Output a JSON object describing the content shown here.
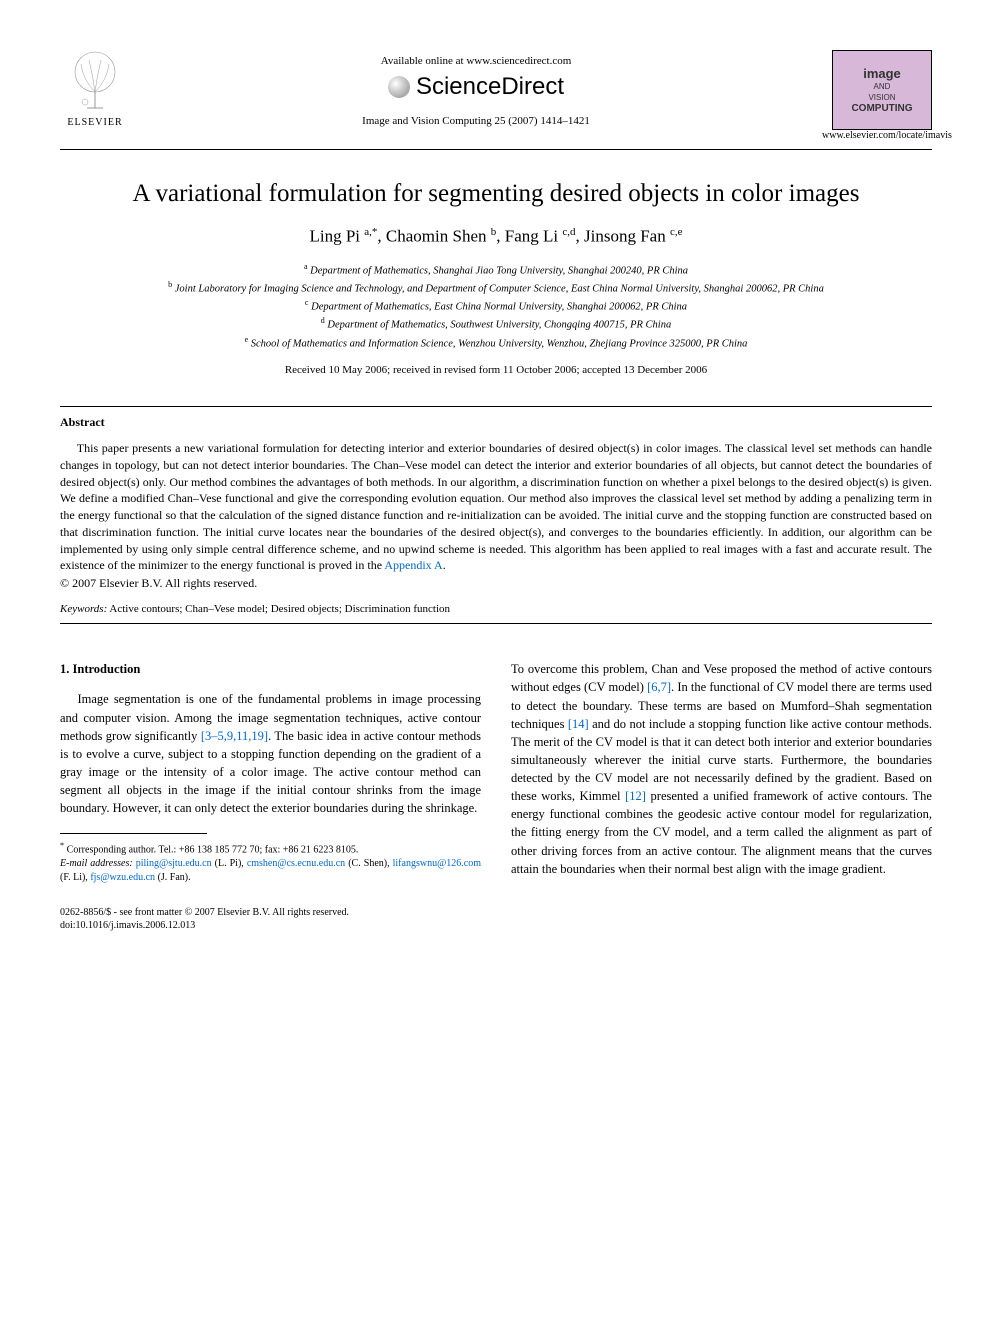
{
  "header": {
    "available_online": "Available online at www.sciencedirect.com",
    "sciencedirect": "ScienceDirect",
    "citation": "Image and Vision Computing 25 (2007) 1414–1421",
    "elsevier_label": "ELSEVIER",
    "journal_box": {
      "line1": "image",
      "line2": "AND",
      "line3a": "VISION",
      "line3b": "COMPUTING"
    },
    "journal_url": "www.elsevier.com/locate/imavis"
  },
  "title": "A variational formulation for segmenting desired objects in color images",
  "authors_html": "Ling Pi <sup>a,*</sup>, Chaomin Shen <sup>b</sup>, Fang Li <sup>c,d</sup>, Jinsong Fan <sup>c,e</sup>",
  "affiliations": [
    {
      "sup": "a",
      "text": "Department of Mathematics, Shanghai Jiao Tong University, Shanghai 200240, PR China"
    },
    {
      "sup": "b",
      "text": "Joint Laboratory for Imaging Science and Technology, and Department of Computer Science, East China Normal University, Shanghai 200062, PR China"
    },
    {
      "sup": "c",
      "text": "Department of Mathematics, East China Normal University, Shanghai 200062, PR China"
    },
    {
      "sup": "d",
      "text": "Department of Mathematics, Southwest University, Chongqing 400715, PR China"
    },
    {
      "sup": "e",
      "text": "School of Mathematics and Information Science, Wenzhou University, Wenzhou, Zhejiang Province 325000, PR China"
    }
  ],
  "dates": "Received 10 May 2006; received in revised form 11 October 2006; accepted 13 December 2006",
  "abstract": {
    "heading": "Abstract",
    "body": "This paper presents a new variational formulation for detecting interior and exterior boundaries of desired object(s) in color images. The classical level set methods can handle changes in topology, but can not detect interior boundaries. The Chan–Vese model can detect the interior and exterior boundaries of all objects, but cannot detect the boundaries of desired object(s) only. Our method combines the advantages of both methods. In our algorithm, a discrimination function on whether a pixel belongs to the desired object(s) is given. We define a modified Chan–Vese functional and give the corresponding evolution equation. Our method also improves the classical level set method by adding a penalizing term in the energy functional so that the calculation of the signed distance function and re-initialization can be avoided. The initial curve and the stopping function are constructed based on that discrimination function. The initial curve locates near the boundaries of the desired object(s), and converges to the boundaries efficiently. In addition, our algorithm can be implemented by using only simple central difference scheme, and no upwind scheme is needed. This algorithm has been applied to real images with a fast and accurate result. The existence of the minimizer to the energy functional is proved in the ",
    "appendix_link": "Appendix A",
    "body_tail": ".",
    "copyright": "© 2007 Elsevier B.V. All rights reserved."
  },
  "keywords": {
    "label": "Keywords:",
    "text": " Active contours; Chan–Vese model; Desired objects; Discrimination function"
  },
  "section1": {
    "heading": "1. Introduction",
    "left_para": "Image segmentation is one of the fundamental problems in image processing and computer vision. Among the image segmentation techniques, active contour methods grow significantly ",
    "left_ref1": "[3–5,9,11,19]",
    "left_para2": ". The basic idea in active contour methods is to evolve a curve, subject to a stopping function depending on the gradient of a gray image or the intensity of a color image. The active contour method can segment all objects in the image if the initial contour shrinks from the image boundary. However, it can only detect the exterior boundaries during the shrinkage.",
    "right_para1": "To overcome this problem, Chan and Vese proposed the method of active contours without edges (CV model) ",
    "right_ref1": "[6,7]",
    "right_para2": ". In the functional of CV model there are terms used to detect the boundary. These terms are based on Mumford–Shah segmentation techniques ",
    "right_ref2": "[14]",
    "right_para3": " and do not include a stopping function like active contour methods. The merit of the CV model is that it can detect both interior and exterior boundaries simultaneously wherever the initial curve starts. Furthermore, the boundaries detected by the CV model are not necessarily defined by the gradient. Based on these works, Kimmel ",
    "right_ref3": "[12]",
    "right_para4": " presented a unified framework of active contours. The energy functional combines the geodesic active contour model for regularization, the fitting energy from the CV model, and a term called the alignment as part of other driving forces from an active contour. The alignment means that the curves attain the boundaries when their normal best align with the image gradient."
  },
  "footnotes": {
    "corr": "Corresponding author. Tel.: +86 138 185 772 70; fax: +86 21 6223 8105.",
    "email_label": "E-mail addresses:",
    "emails": [
      {
        "addr": "piling@sjtu.edu.cn",
        "name": "(L. Pi)"
      },
      {
        "addr": "cmshen@cs.ecnu.edu.cn",
        "name": "(C. Shen)"
      },
      {
        "addr": "lifangswnu@126.com",
        "name": "(F. Li)"
      },
      {
        "addr": "fjs@wzu.edu.cn",
        "name": "(J. Fan)."
      }
    ]
  },
  "footer": {
    "line1": "0262-8856/$ - see front matter © 2007 Elsevier B.V. All rights reserved.",
    "line2": "doi:10.1016/j.imavis.2006.12.013"
  },
  "colors": {
    "link": "#0066cc",
    "text": "#000000",
    "background": "#ffffff",
    "journal_box_bg": "#d8b8d8"
  }
}
